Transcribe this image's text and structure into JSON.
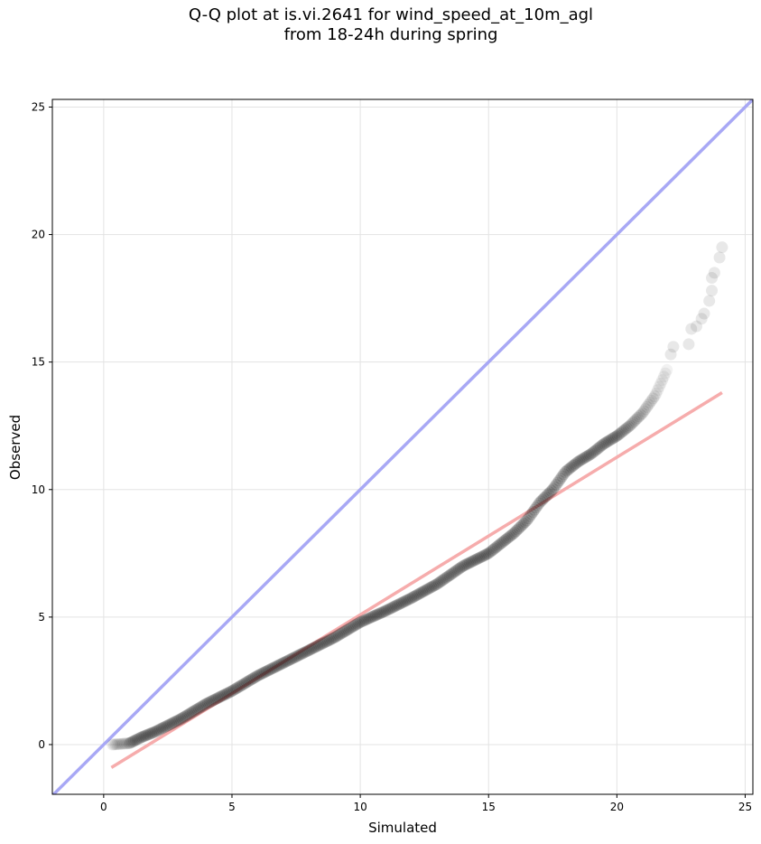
{
  "chart_data": {
    "type": "scatter",
    "title_lines": [
      "Q-Q plot at is.vi.2641 for wind_speed_at_10m_agl",
      "from 18-24h during spring"
    ],
    "xlabel": "Simulated",
    "ylabel": "Observed",
    "xlim": [
      -2.0,
      25.3
    ],
    "ylim": [
      -1.95,
      25.3
    ],
    "xticks": [
      0,
      5,
      10,
      15,
      20,
      25
    ],
    "yticks": [
      0,
      5,
      10,
      15,
      20,
      25
    ],
    "grid": true,
    "reference_line": {
      "name": "1:1 line",
      "color": "#a8a8f5",
      "from": [
        -2.0,
        -2.0
      ],
      "to": [
        25.3,
        25.3
      ]
    },
    "fit_line": {
      "name": "linear fit",
      "color": "#f5a8a8",
      "from": [
        0.3,
        -0.9
      ],
      "to": [
        24.1,
        13.8
      ]
    },
    "point_color": "#000000",
    "anchors": [
      [
        0.35,
        0.0
      ],
      [
        1.0,
        0.05
      ],
      [
        1.5,
        0.3
      ],
      [
        2.0,
        0.5
      ],
      [
        3.0,
        1.0
      ],
      [
        4.0,
        1.6
      ],
      [
        5.0,
        2.1
      ],
      [
        6.0,
        2.7
      ],
      [
        7.0,
        3.2
      ],
      [
        8.0,
        3.7
      ],
      [
        9.0,
        4.2
      ],
      [
        10.0,
        4.8
      ],
      [
        11.0,
        5.25
      ],
      [
        12.0,
        5.75
      ],
      [
        13.0,
        6.3
      ],
      [
        14.0,
        7.0
      ],
      [
        15.0,
        7.5
      ],
      [
        16.0,
        8.3
      ],
      [
        16.5,
        8.8
      ],
      [
        17.0,
        9.5
      ],
      [
        17.5,
        10.0
      ],
      [
        18.0,
        10.7
      ],
      [
        18.5,
        11.1
      ],
      [
        19.0,
        11.4
      ],
      [
        19.5,
        11.8
      ],
      [
        20.0,
        12.1
      ],
      [
        20.5,
        12.5
      ],
      [
        21.0,
        13.0
      ],
      [
        21.5,
        13.7
      ],
      [
        22.0,
        14.8
      ]
    ],
    "sparse_points": [
      [
        22.1,
        15.3
      ],
      [
        22.2,
        15.6
      ],
      [
        22.8,
        15.7
      ],
      [
        22.9,
        16.3
      ],
      [
        23.1,
        16.4
      ],
      [
        23.3,
        16.7
      ],
      [
        23.4,
        16.9
      ],
      [
        23.6,
        17.4
      ],
      [
        23.7,
        17.8
      ],
      [
        23.7,
        18.3
      ],
      [
        23.8,
        18.5
      ],
      [
        24.0,
        19.1
      ],
      [
        24.1,
        19.5
      ]
    ]
  }
}
